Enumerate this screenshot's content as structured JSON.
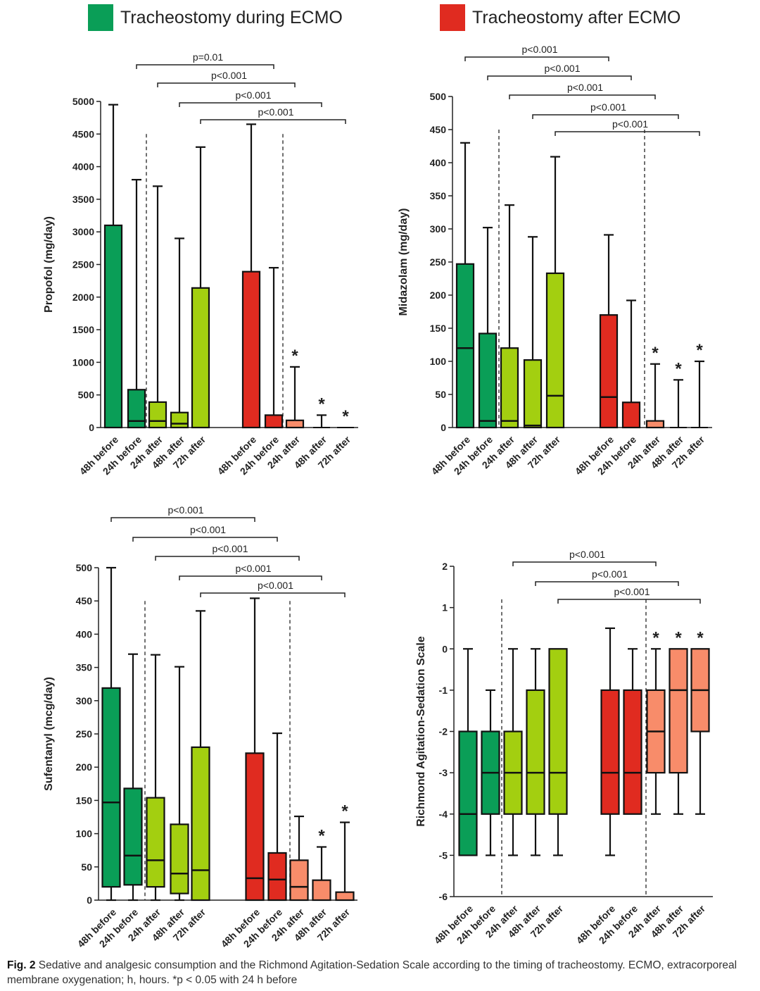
{
  "legend": [
    {
      "label": "Tracheostomy during ECMO",
      "color": "#0a9e57"
    },
    {
      "label": "Tracheostomy after ECMO",
      "color": "#e02b20"
    }
  ],
  "caption": {
    "fig_label": "Fig. 2",
    "text": "Sedative and analgesic consumption and the Richmond Agitation-Sedation Scale according to the timing of tracheostomy. ECMO, extracorporeal membrane oxygenation; h, hours. *p < 0.05 with 24 h before"
  },
  "colors": {
    "green_dark": "#0a9e57",
    "green_light": "#a3cf10",
    "red": "#e02b20",
    "salmon": "#f88c6a"
  },
  "chart_data": [
    {
      "type": "box",
      "id": "propofol",
      "ylabel": "Propofol (mg/day)",
      "ylim": [
        0,
        5000
      ],
      "yticks": [
        0,
        500,
        1000,
        1500,
        2000,
        2500,
        3000,
        3500,
        4000,
        4500,
        5000
      ],
      "categories": [
        "48h before",
        "24h before",
        "24h after",
        "48h after",
        "72h after",
        "48h before",
        "24h before",
        "24h after",
        "48h after",
        "72h after"
      ],
      "boxes": [
        {
          "min": 0,
          "q1": 0,
          "median": 0,
          "q3": 3100,
          "max": 4950,
          "color": "green_dark"
        },
        {
          "min": 0,
          "q1": 0,
          "median": 100,
          "q3": 580,
          "max": 3800,
          "color": "green_dark"
        },
        {
          "min": 0,
          "q1": 0,
          "median": 100,
          "q3": 390,
          "max": 3700,
          "color": "green_light"
        },
        {
          "min": 0,
          "q1": 0,
          "median": 60,
          "q3": 230,
          "max": 2900,
          "color": "green_light"
        },
        {
          "min": 0,
          "q1": 0,
          "median": 0,
          "q3": 2140,
          "max": 4300,
          "color": "green_light"
        },
        {
          "min": 0,
          "q1": 0,
          "median": 0,
          "q3": 2390,
          "max": 4650,
          "color": "red"
        },
        {
          "min": 0,
          "q1": 0,
          "median": 0,
          "q3": 190,
          "max": 2450,
          "color": "red"
        },
        {
          "min": 0,
          "q1": 0,
          "median": 0,
          "q3": 110,
          "max": 930,
          "color": "salmon",
          "star": "*"
        },
        {
          "min": 0,
          "q1": 0,
          "median": 0,
          "q3": 0,
          "max": 190,
          "color": "salmon",
          "star": "*"
        },
        {
          "min": 0,
          "q1": 0,
          "median": 0,
          "q3": 0,
          "max": 0,
          "color": "salmon",
          "star": "*"
        }
      ],
      "dashed_after": [
        1,
        6
      ],
      "brackets": [
        {
          "from": 1,
          "to": 6,
          "label": "p=0.01"
        },
        {
          "from": 2,
          "to": 7,
          "label": "p<0.001"
        },
        {
          "from": 3,
          "to": 8,
          "label": "p<0.001"
        },
        {
          "from": 4,
          "to": 9,
          "label": "p<0.001"
        }
      ]
    },
    {
      "type": "box",
      "id": "midazolam",
      "ylabel": "Midazolam (mg/day)",
      "ylim": [
        0,
        500
      ],
      "yticks": [
        0,
        50,
        100,
        150,
        200,
        250,
        300,
        350,
        400,
        450,
        500
      ],
      "categories": [
        "48h before",
        "24h before",
        "24h after",
        "48h after",
        "72h after",
        "48h before",
        "24h before",
        "24h after",
        "48h after",
        "72h after"
      ],
      "boxes": [
        {
          "min": 0,
          "q1": 0,
          "median": 120,
          "q3": 247,
          "max": 430,
          "color": "green_dark"
        },
        {
          "min": 0,
          "q1": 0,
          "median": 10,
          "q3": 142,
          "max": 302,
          "color": "green_dark"
        },
        {
          "min": 0,
          "q1": 0,
          "median": 10,
          "q3": 120,
          "max": 336,
          "color": "green_light"
        },
        {
          "min": 0,
          "q1": 0,
          "median": 3,
          "q3": 102,
          "max": 288,
          "color": "green_light"
        },
        {
          "min": 0,
          "q1": 0,
          "median": 48,
          "q3": 233,
          "max": 409,
          "color": "green_light"
        },
        {
          "min": 0,
          "q1": 0,
          "median": 46,
          "q3": 170,
          "max": 291,
          "color": "red"
        },
        {
          "min": 0,
          "q1": 0,
          "median": 0,
          "q3": 38,
          "max": 192,
          "color": "red"
        },
        {
          "min": 0,
          "q1": 0,
          "median": 0,
          "q3": 10,
          "max": 96,
          "color": "salmon",
          "star": "*"
        },
        {
          "min": 0,
          "q1": 0,
          "median": 0,
          "q3": 0,
          "max": 72,
          "color": "salmon",
          "star": "*"
        },
        {
          "min": 0,
          "q1": 0,
          "median": 0,
          "q3": 0,
          "max": 100,
          "color": "salmon",
          "star": "*"
        }
      ],
      "dashed_after": [
        1,
        6
      ],
      "brackets": [
        {
          "from": 0,
          "to": 5,
          "label": "p<0.001"
        },
        {
          "from": 1,
          "to": 6,
          "label": "p<0.001"
        },
        {
          "from": 2,
          "to": 7,
          "label": "p<0.001"
        },
        {
          "from": 3,
          "to": 8,
          "label": "p<0.001"
        },
        {
          "from": 4,
          "to": 9,
          "label": "p<0.001"
        }
      ]
    },
    {
      "type": "box",
      "id": "sufentanyl",
      "ylabel": "Sufentanyl (mcg/day)",
      "ylim": [
        0,
        500
      ],
      "yticks": [
        0,
        50,
        100,
        150,
        200,
        250,
        300,
        350,
        400,
        450,
        500
      ],
      "categories": [
        "48h before",
        "24h before",
        "24h after",
        "48h after",
        "72h after",
        "48h before",
        "24h before",
        "24h after",
        "48h after",
        "72h after"
      ],
      "boxes": [
        {
          "min": 0,
          "q1": 20,
          "median": 147,
          "q3": 319,
          "max": 500,
          "color": "green_dark"
        },
        {
          "min": 0,
          "q1": 23,
          "median": 67,
          "q3": 168,
          "max": 370,
          "color": "green_dark"
        },
        {
          "min": 0,
          "q1": 20,
          "median": 60,
          "q3": 154,
          "max": 369,
          "color": "green_light"
        },
        {
          "min": 0,
          "q1": 10,
          "median": 40,
          "q3": 114,
          "max": 351,
          "color": "green_light"
        },
        {
          "min": 0,
          "q1": 0,
          "median": 45,
          "q3": 230,
          "max": 435,
          "color": "green_light"
        },
        {
          "min": 0,
          "q1": 0,
          "median": 33,
          "q3": 221,
          "max": 454,
          "color": "red"
        },
        {
          "min": 0,
          "q1": 0,
          "median": 31,
          "q3": 71,
          "max": 251,
          "color": "red"
        },
        {
          "min": 0,
          "q1": 0,
          "median": 20,
          "q3": 60,
          "max": 126,
          "color": "salmon"
        },
        {
          "min": 0,
          "q1": 0,
          "median": 0,
          "q3": 30,
          "max": 80,
          "color": "salmon",
          "star": "*"
        },
        {
          "min": 0,
          "q1": 0,
          "median": 0,
          "q3": 12,
          "max": 117,
          "color": "salmon",
          "star": "*"
        }
      ],
      "dashed_after": [
        1,
        6
      ],
      "brackets": [
        {
          "from": 0,
          "to": 5,
          "label": "p<0.001"
        },
        {
          "from": 1,
          "to": 6,
          "label": "p<0.001"
        },
        {
          "from": 2,
          "to": 7,
          "label": "p<0.001"
        },
        {
          "from": 3,
          "to": 8,
          "label": "p<0.001"
        },
        {
          "from": 4,
          "to": 9,
          "label": "p<0.001"
        }
      ]
    },
    {
      "type": "box",
      "id": "rass",
      "ylabel": "Richmond Agitation-Sedation Scale",
      "ylim": [
        -6,
        2
      ],
      "yticks": [
        -6,
        -5,
        -4,
        -3,
        -2,
        -1,
        0,
        1,
        2
      ],
      "categories": [
        "48h before",
        "24h before",
        "24h after",
        "48h after",
        "72h after",
        "48h before",
        "24h before",
        "24h after",
        "48h after",
        "72h after"
      ],
      "boxes": [
        {
          "min": -5,
          "q1": -5,
          "median": -4,
          "q3": -2,
          "max": 0,
          "color": "green_dark"
        },
        {
          "min": -5,
          "q1": -4,
          "median": -3,
          "q3": -2,
          "max": -1,
          "color": "green_dark"
        },
        {
          "min": -5,
          "q1": -4,
          "median": -3,
          "q3": -2,
          "max": 0,
          "color": "green_light"
        },
        {
          "min": -5,
          "q1": -4,
          "median": -3,
          "q3": -1,
          "max": 0,
          "color": "green_light"
        },
        {
          "min": -5,
          "q1": -4,
          "median": -3,
          "q3": 0,
          "max": 0,
          "color": "green_light"
        },
        {
          "min": -5,
          "q1": -4,
          "median": -3,
          "q3": -1,
          "max": 0.5,
          "color": "red"
        },
        {
          "min": -4,
          "q1": -4,
          "median": -3,
          "q3": -1,
          "max": 0,
          "color": "red"
        },
        {
          "min": -4,
          "q1": -3,
          "median": -2,
          "q3": -1,
          "max": 0,
          "color": "salmon",
          "star": "*"
        },
        {
          "min": -4,
          "q1": -3,
          "median": -1,
          "q3": 0,
          "max": 0,
          "color": "salmon",
          "star": "*"
        },
        {
          "min": -4,
          "q1": -2,
          "median": -1,
          "q3": 0,
          "max": 0,
          "color": "salmon",
          "star": "*"
        }
      ],
      "dashed_after": [
        1,
        6
      ],
      "brackets": [
        {
          "from": 2,
          "to": 7,
          "label": "p<0.001"
        },
        {
          "from": 3,
          "to": 8,
          "label": "p<0.001"
        },
        {
          "from": 4,
          "to": 9,
          "label": "p<0.001"
        }
      ]
    }
  ]
}
